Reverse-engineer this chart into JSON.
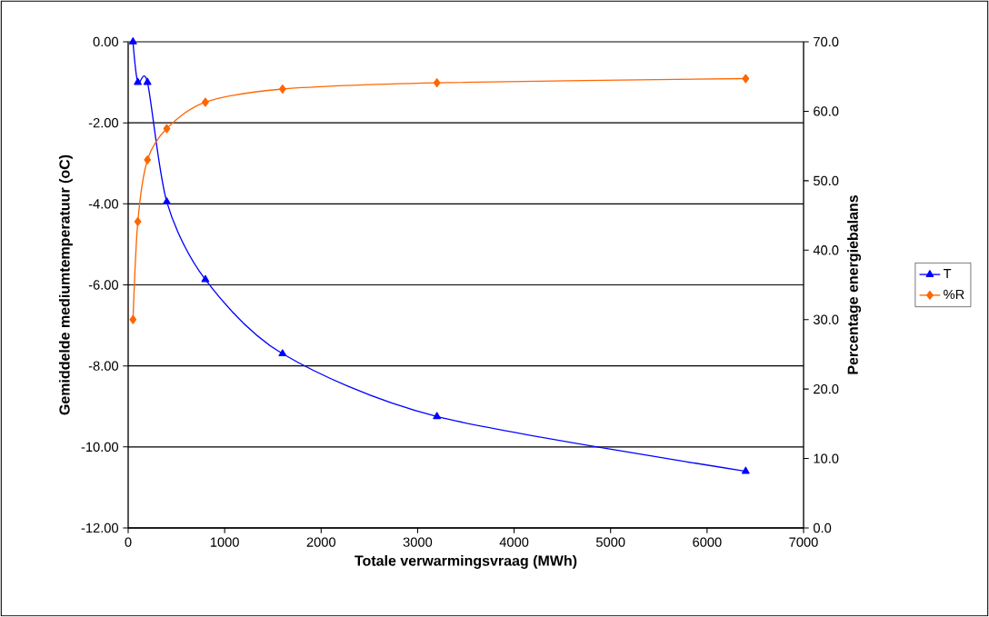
{
  "chart_data": {
    "type": "line",
    "xlabel": "Totale verwarmingsvraag (MWh)",
    "ylabel": "Gemiddelde mediumtemperatuur (oC)",
    "y2label": "Percentage energiebalans",
    "x": [
      50,
      100,
      200,
      400,
      800,
      1600,
      3200,
      6400
    ],
    "series": [
      {
        "name": "T",
        "color": "#0000ff",
        "marker": "triangle",
        "values": [
          0,
          -1.0,
          -1.0,
          -3.95,
          -5.87,
          -7.7,
          -9.25,
          -10.6
        ]
      },
      {
        "name": "%R",
        "color": "#ff6600",
        "marker": "diamond",
        "axis": "y2",
        "values": [
          30.0,
          44.1,
          53.0,
          57.5,
          61.3,
          63.2,
          64.1,
          64.7
        ]
      }
    ],
    "xlim": [
      0,
      7000
    ],
    "xticks": [
      0,
      1000,
      2000,
      3000,
      4000,
      5000,
      6000,
      7000
    ],
    "ylim": [
      -12,
      0
    ],
    "yticks": [
      {
        "value": -12,
        "label": "-12.00"
      },
      {
        "value": -10,
        "label": "-10.00"
      },
      {
        "value": -8,
        "label": "-8.00"
      },
      {
        "value": -6,
        "label": "-6.00"
      },
      {
        "value": -4,
        "label": "-4.00"
      },
      {
        "value": -2,
        "label": "-2.00"
      },
      {
        "value": 0,
        "label": "0.00"
      }
    ],
    "y2lim": [
      0,
      70
    ],
    "y2ticks": [
      {
        "value": 0,
        "label": "0.0"
      },
      {
        "value": 10,
        "label": "10.0"
      },
      {
        "value": 20,
        "label": "20.0"
      },
      {
        "value": 30,
        "label": "30.0"
      },
      {
        "value": 40,
        "label": "40.0"
      },
      {
        "value": 50,
        "label": "50.0"
      },
      {
        "value": 60,
        "label": "60.0"
      },
      {
        "value": 70,
        "label": "70.0"
      }
    ],
    "grid": "y",
    "legend": "right",
    "line_style": "solid"
  }
}
